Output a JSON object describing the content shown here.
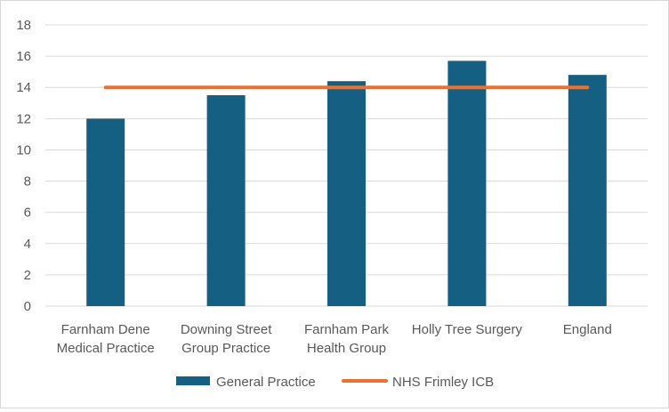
{
  "chart_data": {
    "type": "bar",
    "title": "",
    "xlabel": "",
    "ylabel": "",
    "ylim": [
      0,
      18
    ],
    "yticks": [
      0,
      2,
      4,
      6,
      8,
      10,
      12,
      14,
      16,
      18
    ],
    "grid": true,
    "legend_position": "bottom",
    "categories": [
      [
        "Farnham Dene",
        "Medical Practice"
      ],
      [
        "Downing Street",
        "Group Practice"
      ],
      [
        "Farnham Park",
        "Health Group"
      ],
      [
        "Holly Tree Surgery"
      ],
      [
        "England"
      ]
    ],
    "series": [
      {
        "name": "General Practice",
        "kind": "bar",
        "color": "#156082",
        "values": [
          12.0,
          13.5,
          14.4,
          15.7,
          14.8
        ]
      },
      {
        "name": "NHS Frimley ICB",
        "kind": "line",
        "color": "#e97132",
        "values": [
          14.0,
          14.0,
          14.0,
          14.0,
          14.0
        ]
      }
    ]
  }
}
